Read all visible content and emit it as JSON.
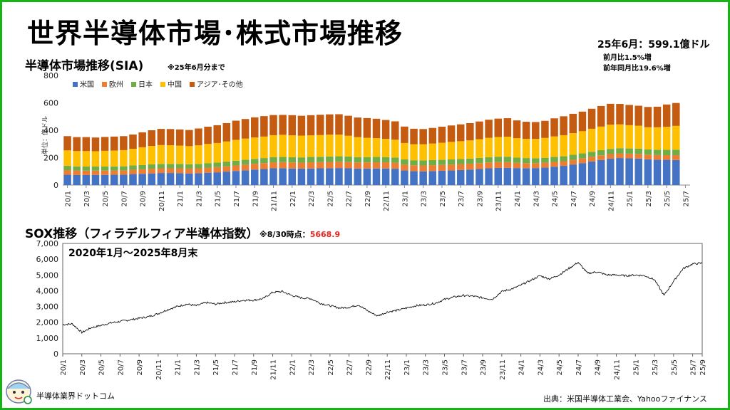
{
  "page": {
    "title": "世界半導体市場･株式市場推移",
    "summary_main": "25年6月：599.1億ドル",
    "summary_mom": "前月比1.5%増",
    "summary_yoy": "前年同月比19.6%増",
    "chart1_title": "半導体市場推移(SIA)",
    "chart1_note": "※25年6月分まで",
    "chart2_title": "SOX推移（フィラデルフィア半導体指数）",
    "chart2_note_prefix": "※8/30時点：",
    "chart2_note_value": "5668.9",
    "logo_text": "半導体業界ドットコム",
    "source": "出典：米国半導体工業会、Yahooファイナンス",
    "colors": {
      "frame": "#17b317",
      "highlight": "#e8241d"
    }
  },
  "chart_data": [
    {
      "type": "bar",
      "stacked": true,
      "title": "半導体市場推移(SIA)",
      "ylabel": "単位：億ドル",
      "ylim": [
        0,
        800
      ],
      "yticks": [
        0,
        200,
        400,
        600,
        800
      ],
      "legend_position": "top-left",
      "x_tick_labels": [
        "20/1",
        "20/3",
        "20/5",
        "20/7",
        "20/9",
        "20/11",
        "21/1",
        "21/3",
        "21/5",
        "21/7",
        "21/9",
        "21/11",
        "22/1",
        "22/3",
        "22/5",
        "22/7",
        "22/9",
        "22/11",
        "23/1",
        "23/3",
        "23/5",
        "23/7",
        "23/9",
        "23/11",
        "24/1",
        "24/3",
        "24/5",
        "24/7",
        "24/9",
        "24/11",
        "25/1",
        "25/3",
        "25/5",
        "25/7"
      ],
      "categories": [
        "20/1",
        "20/2",
        "20/3",
        "20/4",
        "20/5",
        "20/6",
        "20/7",
        "20/8",
        "20/9",
        "20/10",
        "20/11",
        "20/12",
        "21/1",
        "21/2",
        "21/3",
        "21/4",
        "21/5",
        "21/6",
        "21/7",
        "21/8",
        "21/9",
        "21/10",
        "21/11",
        "21/12",
        "22/1",
        "22/2",
        "22/3",
        "22/4",
        "22/5",
        "22/6",
        "22/7",
        "22/8",
        "22/9",
        "22/10",
        "22/11",
        "22/12",
        "23/1",
        "23/2",
        "23/3",
        "23/4",
        "23/5",
        "23/6",
        "23/7",
        "23/8",
        "23/9",
        "23/10",
        "23/11",
        "23/12",
        "24/1",
        "24/2",
        "24/3",
        "24/4",
        "24/5",
        "24/6",
        "24/7",
        "24/8",
        "24/9",
        "24/10",
        "24/11",
        "24/12",
        "25/1",
        "25/2",
        "25/3",
        "25/4",
        "25/5",
        "25/6",
        "25/7"
      ],
      "series": [
        {
          "name": "米国",
          "color": "#4472c4",
          "values": [
            75,
            73,
            73,
            74,
            74,
            75,
            76,
            80,
            82,
            85,
            88,
            88,
            87,
            85,
            86,
            90,
            93,
            98,
            103,
            108,
            113,
            117,
            122,
            123,
            121,
            120,
            121,
            122,
            123,
            124,
            122,
            120,
            120,
            121,
            121,
            119,
            107,
            101,
            100,
            102,
            104,
            107,
            110,
            113,
            117,
            122,
            125,
            126,
            124,
            123,
            124,
            128,
            134,
            140,
            150,
            160,
            172,
            183,
            192,
            197,
            195,
            193,
            188,
            185,
            184,
            183,
            null
          ]
        },
        {
          "name": "欧州",
          "color": "#ed7d31",
          "values": [
            34,
            33,
            32,
            31,
            31,
            31,
            31,
            32,
            33,
            34,
            34,
            34,
            35,
            35,
            36,
            37,
            38,
            39,
            40,
            41,
            42,
            43,
            44,
            44,
            44,
            44,
            45,
            45,
            46,
            46,
            46,
            45,
            45,
            45,
            45,
            44,
            43,
            43,
            43,
            43,
            43,
            43,
            43,
            43,
            43,
            43,
            43,
            42,
            38,
            37,
            36,
            35,
            35,
            34,
            34,
            34,
            34,
            34,
            34,
            34,
            34,
            34,
            34,
            34,
            34,
            35,
            null
          ]
        },
        {
          "name": "日本",
          "color": "#70ad47",
          "values": [
            31,
            30,
            30,
            30,
            30,
            30,
            30,
            31,
            31,
            32,
            32,
            32,
            32,
            32,
            32,
            33,
            33,
            34,
            35,
            36,
            36,
            37,
            38,
            38,
            38,
            38,
            39,
            39,
            40,
            40,
            40,
            39,
            39,
            39,
            38,
            38,
            37,
            37,
            37,
            37,
            37,
            37,
            37,
            37,
            38,
            38,
            39,
            39,
            38,
            37,
            36,
            36,
            36,
            36,
            37,
            37,
            37,
            38,
            38,
            38,
            38,
            38,
            38,
            39,
            39,
            40,
            null
          ]
        },
        {
          "name": "中国",
          "color": "#ffc000",
          "values": [
            113,
            112,
            113,
            112,
            115,
            116,
            118,
            122,
            130,
            134,
            138,
            137,
            134,
            132,
            136,
            140,
            143,
            147,
            152,
            154,
            156,
            157,
            160,
            162,
            160,
            159,
            158,
            159,
            159,
            158,
            152,
            146,
            141,
            137,
            133,
            130,
            120,
            117,
            118,
            121,
            125,
            128,
            130,
            133,
            137,
            142,
            144,
            146,
            142,
            140,
            141,
            145,
            150,
            154,
            158,
            162,
            168,
            172,
            177,
            174,
            170,
            168,
            162,
            164,
            168,
            174,
            null
          ]
        },
        {
          "name": "アジア･その他",
          "color": "#c55a11",
          "values": [
            104,
            102,
            102,
            100,
            101,
            102,
            102,
            104,
            109,
            115,
            118,
            118,
            118,
            118,
            123,
            126,
            130,
            134,
            140,
            143,
            147,
            149,
            147,
            145,
            147,
            145,
            147,
            148,
            148,
            149,
            146,
            143,
            144,
            142,
            138,
            134,
            120,
            113,
            111,
            114,
            117,
            120,
            123,
            126,
            129,
            132,
            134,
            135,
            130,
            125,
            123,
            125,
            132,
            138,
            141,
            143,
            146,
            150,
            152,
            149,
            148,
            146,
            148,
            150,
            163,
            167,
            null
          ]
        }
      ]
    },
    {
      "type": "line",
      "title": "SOX推移（フィラデルフィア半導体指数）",
      "annotation": "2020年1月～2025年8月末",
      "ylim": [
        0,
        7000
      ],
      "yticks": [
        0,
        1000,
        2000,
        3000,
        4000,
        5000,
        6000,
        7000
      ],
      "ytick_labels": [
        "0",
        "1,000",
        "2,000",
        "3,000",
        "4,000",
        "5,000",
        "6,000",
        "7,000"
      ],
      "x_tick_labels": [
        "20/1",
        "20/3",
        "20/5",
        "20/7",
        "20/9",
        "20/11",
        "21/1",
        "21/3",
        "21/5",
        "21/7",
        "21/9",
        "21/11",
        "22/1",
        "22/3",
        "22/5",
        "22/7",
        "22/9",
        "22/11",
        "23/1",
        "23/3",
        "23/5",
        "23/7",
        "23/9",
        "23/11",
        "24/1",
        "24/3",
        "24/5",
        "24/7",
        "24/9",
        "24/11",
        "25/1",
        "25/3",
        "25/5",
        "25/7",
        "25/9"
      ],
      "x": [
        "20/1",
        "20/2",
        "20/3",
        "20/4",
        "20/5",
        "20/6",
        "20/7",
        "20/8",
        "20/9",
        "20/10",
        "20/11",
        "20/12",
        "21/1",
        "21/2",
        "21/3",
        "21/4",
        "21/5",
        "21/6",
        "21/7",
        "21/8",
        "21/9",
        "21/10",
        "21/11",
        "21/12",
        "22/1",
        "22/2",
        "22/3",
        "22/4",
        "22/5",
        "22/6",
        "22/7",
        "22/8",
        "22/9",
        "22/10",
        "22/11",
        "22/12",
        "23/1",
        "23/2",
        "23/3",
        "23/4",
        "23/5",
        "23/6",
        "23/7",
        "23/8",
        "23/9",
        "23/10",
        "23/11",
        "23/12",
        "24/1",
        "24/2",
        "24/3",
        "24/4",
        "24/5",
        "24/6",
        "24/7",
        "24/8",
        "24/9",
        "24/10",
        "24/11",
        "24/12",
        "25/1",
        "25/2",
        "25/3",
        "25/4",
        "25/5",
        "25/6",
        "25/7",
        "25/8"
      ],
      "values": [
        1850,
        1900,
        1350,
        1650,
        1800,
        1950,
        2050,
        2150,
        2250,
        2350,
        2550,
        2800,
        3000,
        3150,
        3050,
        3250,
        3150,
        3250,
        3300,
        3400,
        3400,
        3500,
        3900,
        3950,
        3700,
        3550,
        3500,
        3200,
        3050,
        2900,
        2950,
        3100,
        2700,
        2400,
        2650,
        2750,
        2900,
        3050,
        3100,
        3200,
        3450,
        3600,
        3700,
        3650,
        3550,
        3450,
        3950,
        4100,
        4350,
        4650,
        4950,
        4750,
        5000,
        5400,
        5800,
        5100,
        5200,
        5000,
        5000,
        4950,
        5000,
        4950,
        4700,
        3700,
        4600,
        5400,
        5700,
        5750
      ]
    }
  ]
}
